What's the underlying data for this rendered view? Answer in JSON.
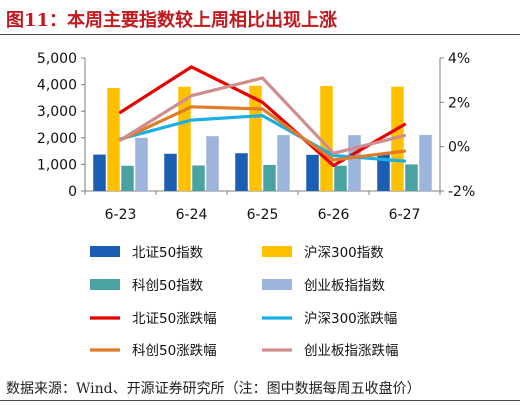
{
  "title": "图11：本周主要指数较上周相比出现上涨",
  "source": "数据来源：Wind、开源证券研究所（注：图中数据每周五收盘价）",
  "chart_data": {
    "type": "bar",
    "categories": [
      "6-23",
      "6-24",
      "6-25",
      "6-26",
      "6-27"
    ],
    "y_left": {
      "lim": [
        0,
        5000
      ],
      "ticks": [
        0,
        1000,
        2000,
        3000,
        4000,
        5000
      ],
      "tick_labels": [
        "0",
        "1,000",
        "2,000",
        "3,000",
        "4,000",
        "5,000"
      ]
    },
    "y_right": {
      "lim": [
        -2,
        4
      ],
      "ticks": [
        -2,
        0,
        2,
        4
      ],
      "tick_labels": [
        "-2%",
        "0%",
        "2%",
        "4%"
      ],
      "unit": "%"
    },
    "bar_series": [
      {
        "name": "北证50指数",
        "color": "#1a5fb4",
        "values": [
          1370,
          1400,
          1420,
          1360,
          1390
        ]
      },
      {
        "name": "沪深300指数",
        "color": "#ffc000",
        "values": [
          3870,
          3920,
          3960,
          3950,
          3920
        ]
      },
      {
        "name": "科创50指数",
        "color": "#4aa3a2",
        "values": [
          950,
          960,
          980,
          950,
          1000
        ]
      },
      {
        "name": "创业板指指数",
        "color": "#9db4dc",
        "values": [
          2000,
          2060,
          2100,
          2100,
          2110
        ]
      }
    ],
    "line_series": [
      {
        "name": "北证50涨跌幅",
        "color": "#e60000",
        "values": [
          1.55,
          3.6,
          2.0,
          -0.85,
          1.0
        ]
      },
      {
        "name": "沪深300涨跌幅",
        "color": "#1ab0e6",
        "values": [
          0.35,
          1.2,
          1.4,
          -0.4,
          -0.65
        ]
      },
      {
        "name": "科创50涨跌幅",
        "color": "#e07b2a",
        "values": [
          0.3,
          1.8,
          1.7,
          -0.6,
          -0.2
        ]
      },
      {
        "name": "创业板指涨跌幅",
        "color": "#d08d8d",
        "values": [
          0.3,
          2.3,
          3.1,
          -0.3,
          0.5
        ]
      }
    ],
    "legend_position": "bottom",
    "grid": false
  }
}
